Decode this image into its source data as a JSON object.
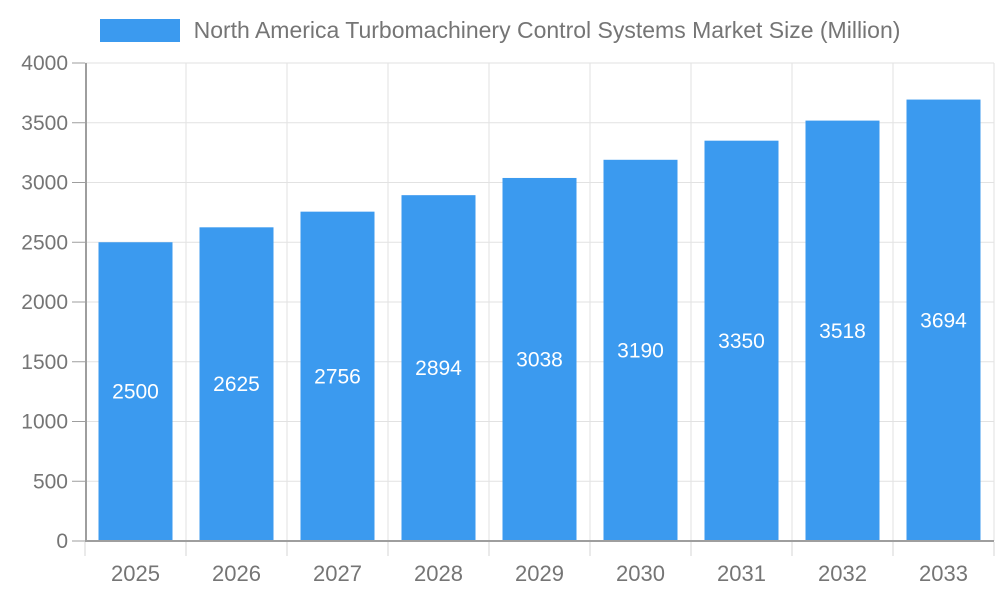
{
  "chart_data": {
    "type": "bar",
    "title": "North America Turbomachinery Control Systems Market Size (Million)",
    "categories": [
      "2025",
      "2026",
      "2027",
      "2028",
      "2029",
      "2030",
      "2031",
      "2032",
      "2033"
    ],
    "values": [
      2500,
      2625,
      2756,
      2894,
      3038,
      3190,
      3350,
      3518,
      3694
    ],
    "xlabel": "",
    "ylabel": "",
    "ylim": [
      0,
      4000
    ],
    "ytick_step": 500,
    "ytick_labels": [
      "0",
      "500",
      "1000",
      "1500",
      "2000",
      "2500",
      "3000",
      "3500",
      "4000"
    ],
    "grid": true,
    "legend_position": "top-center",
    "bar_value_labels": "inside-center",
    "colors": {
      "bar": "#3b9aef",
      "bar_label": "#ffffff",
      "axis_line": "#9e9e9e",
      "grid_line": "#e2e2e2",
      "x_tick": "#d6d6d6",
      "y_tick": "#9e9e9e",
      "tick_label": "#757575",
      "legend_text": "#757575"
    }
  }
}
